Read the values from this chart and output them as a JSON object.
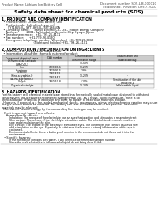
{
  "bg_color": "#ffffff",
  "header_left": "Product Name: Lithium Ion Battery Cell",
  "header_right_line1": "Document number: SDS-LIB-000010",
  "header_right_line2": "Established / Revision: Dec.7.2010",
  "title": "Safety data sheet for chemical products (SDS)",
  "section1_title": "1. PRODUCT AND COMPANY IDENTIFICATION",
  "section1_lines": [
    "  • Product name: Lithium Ion Battery Cell",
    "  • Product code: Cylindrical-type cell",
    "       SYT18650U, SYT18650L, SYT18650A",
    "  • Company name:     Sanyo Electric Co., Ltd., Mobile Energy Company",
    "  • Address:         2001, Kamitakatsu, Sumoto-City, Hyogo, Japan",
    "  • Telephone number:  +81-799-26-4111",
    "  • Fax number:      +81-799-26-4120",
    "  • Emergency telephone number (Weekdays) +81-799-26-3062",
    "                                    (Night and holiday) +81-799-26-4101"
  ],
  "section2_title": "2. COMPOSITION / INFORMATION ON INGREDIENTS",
  "section2_sub": "  • Substance or preparation: Preparation",
  "section2_sub2": "  • Information about the chemical nature of product:",
  "table_headers": [
    "Component chemical name",
    "CAS number",
    "Concentration /\nConcentration range",
    "Classification and\nhazard labeling"
  ],
  "table_rows": [
    [
      "Lithium cobalt tantalate\n(LiMnCoO₄)",
      "-",
      "30-60%",
      "-"
    ],
    [
      "Iron",
      "7439-89-6",
      "10-20%",
      "-"
    ],
    [
      "Aluminum",
      "7429-90-5",
      "2-8%",
      "-"
    ],
    [
      "Graphite\n(Kind-a graphite-I)\n(AI-Mn-a graphite-I)",
      "7782-42-5\n7782-44-2",
      "10-20%",
      "-"
    ],
    [
      "Copper",
      "7440-50-8",
      "5-15%",
      "Sensitization of the skin\ngroup No.2"
    ],
    [
      "Organic electrolyte",
      "-",
      "10-20%",
      "Inflammable liquid"
    ]
  ],
  "section3_title": "3. HAZARDS IDENTIFICATION",
  "section3_lines": [
    "For this battery cell, chemical materials are stored in a hermetically sealed metal case, designed to withstand",
    "temperatures and pressures encountered during normal use. As a result, during normal use, there is no",
    "physical danger of ignition or explosion and there no danger of hazardous materials leakage.",
    "  However, if exposed to a fire, added mechanical shocks, decomposed, a inner electro-chemical reaction may cause",
    "the gas release cannot be operated. The battery cell case will be breached of fire-particles, hazardous",
    "materials may be released.",
    "  Moreover, if heated strongly by the surrounding fire, ionic gas may be emitted."
  ],
  "bullet1": "• Most important hazard and effects:",
  "human_health": "     Human health effects:",
  "human_lines": [
    "          Inhalation: The release of the electrolyte has an anesthesia action and stimulates a respiratory tract.",
    "          Skin contact: The release of the electrolyte stimulates a skin. The electrolyte skin contact causes a",
    "          sore and stimulation on the skin.",
    "          Eye contact: The release of the electrolyte stimulates eyes. The electrolyte eye contact causes a sore",
    "          and stimulation on the eye. Especially, a substance that causes a strong inflammation of the eye is",
    "          contained.",
    "          Environmental effects: Since a battery cell remains in the environment, do not throw out it into the",
    "          environment."
  ],
  "specific_hazards": "• Specific hazards:",
  "specific_lines": [
    "          If the electrolyte contacts with water, it will generate detrimental hydrogen fluoride.",
    "          Since the used electrolyte is inflammable liquid, do not bring close to fire."
  ],
  "footer_line": true
}
